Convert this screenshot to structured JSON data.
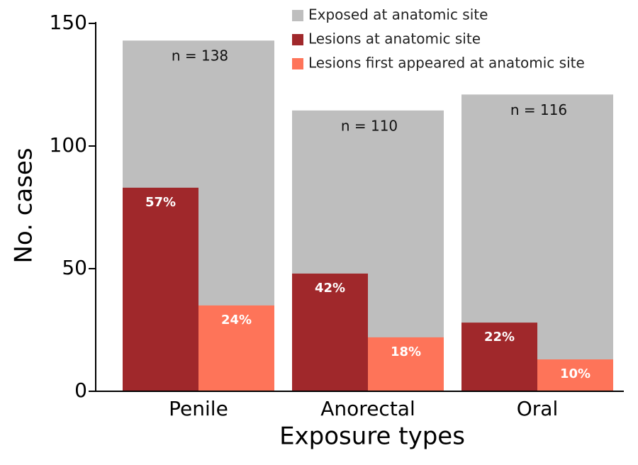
{
  "chart_data": {
    "type": "overlaid_bar",
    "x_label": "Exposure types",
    "y_label": "No. cases",
    "categories": [
      "Penile",
      "Anorectal",
      "Oral"
    ],
    "series": [
      {
        "name": "Exposed at anatomic site",
        "color": "#bebebe",
        "values": [
          143,
          114.5,
          121
        ],
        "n_labels": [
          {
            "value": 138,
            "label": "n = 138"
          },
          {
            "value": 110,
            "label": "n = 110"
          },
          {
            "value": 116,
            "label": "n = 116"
          }
        ]
      },
      {
        "name": "Lesions at anatomic site",
        "color": "#a0282b",
        "values": [
          83,
          48,
          28
        ],
        "percent_labels": [
          {
            "value": 57,
            "label": "57%"
          },
          {
            "value": 42,
            "label": "42%"
          },
          {
            "value": 22,
            "label": "22%"
          }
        ]
      },
      {
        "name": "Lesions first appeared at anatomic site",
        "color": "#fe7459",
        "values": [
          35,
          22,
          13
        ],
        "percent_labels": [
          {
            "value": 24,
            "label": "24%"
          },
          {
            "value": 18,
            "label": "18%"
          },
          {
            "value": 10,
            "label": "10%"
          }
        ]
      }
    ],
    "ylim": [
      0,
      150
    ],
    "yticks": [
      0,
      50,
      100,
      150
    ],
    "legend": "top-right"
  }
}
